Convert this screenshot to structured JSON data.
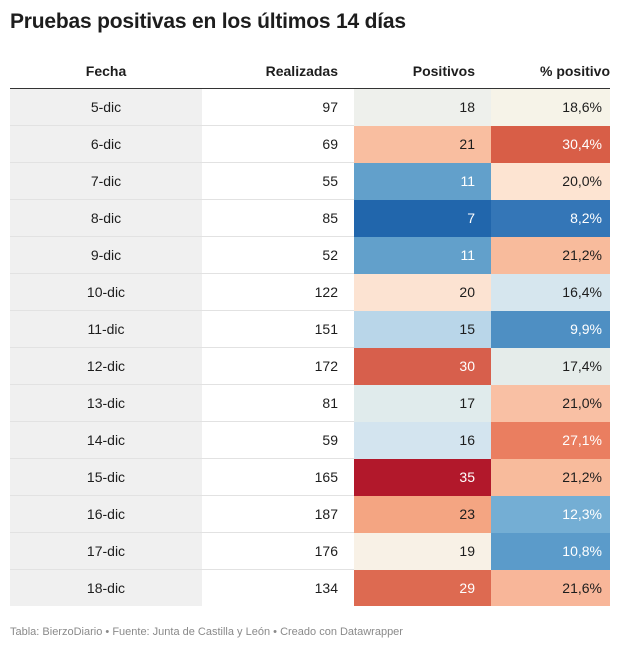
{
  "title": "Pruebas positivas en los últimos 14 días",
  "footer": {
    "source_label": "Tabla: BierzoDiario",
    "fuente": "Fuente: Junta de Castilla y León",
    "credit": "Creado con Datawrapper",
    "separator": "•"
  },
  "chart_data": {
    "type": "table",
    "columns": [
      "Fecha",
      "Realizadas",
      "Positivos",
      "% positivo"
    ],
    "rows": [
      {
        "fecha": "5-dic",
        "realizadas": 97,
        "positivos": 18,
        "pct": "18,6%",
        "pos_color": "#eef0ec",
        "pct_color": "#f6f3e8"
      },
      {
        "fecha": "6-dic",
        "realizadas": 69,
        "positivos": 21,
        "pct": "30,4%",
        "pos_color": "#f9bea0",
        "pct_color": "#d85e47"
      },
      {
        "fecha": "7-dic",
        "realizadas": 55,
        "positivos": 11,
        "pct": "20,0%",
        "pos_color": "#62a0cb",
        "pct_color": "#fde4d2"
      },
      {
        "fecha": "8-dic",
        "realizadas": 85,
        "positivos": 7,
        "pct": "8,2%",
        "pos_color": "#2166ac",
        "pct_color": "#3476b7"
      },
      {
        "fecha": "9-dic",
        "realizadas": 52,
        "positivos": 11,
        "pct": "21,2%",
        "pos_color": "#62a0cb",
        "pct_color": "#f8bb9c"
      },
      {
        "fecha": "10-dic",
        "realizadas": 122,
        "positivos": 20,
        "pct": "16,4%",
        "pos_color": "#fce3d2",
        "pct_color": "#d6e6ee"
      },
      {
        "fecha": "11-dic",
        "realizadas": 151,
        "positivos": 15,
        "pct": "9,9%",
        "pos_color": "#b9d6e9",
        "pct_color": "#4e8fc3"
      },
      {
        "fecha": "12-dic",
        "realizadas": 172,
        "positivos": 30,
        "pct": "17,4%",
        "pos_color": "#d75f4c",
        "pct_color": "#e5ecea"
      },
      {
        "fecha": "13-dic",
        "realizadas": 81,
        "positivos": 17,
        "pct": "21,0%",
        "pos_color": "#e0ebec",
        "pct_color": "#f9c0a4"
      },
      {
        "fecha": "14-dic",
        "realizadas": 59,
        "positivos": 16,
        "pct": "27,1%",
        "pos_color": "#d3e4ef",
        "pct_color": "#ea7e60"
      },
      {
        "fecha": "15-dic",
        "realizadas": 165,
        "positivos": 35,
        "pct": "21,2%",
        "pos_color": "#b2182b",
        "pct_color": "#f8bb9c"
      },
      {
        "fecha": "16-dic",
        "realizadas": 187,
        "positivos": 23,
        "pct": "12,3%",
        "pos_color": "#f4a582",
        "pct_color": "#74aed4"
      },
      {
        "fecha": "17-dic",
        "realizadas": 176,
        "positivos": 19,
        "pct": "10,8%",
        "pos_color": "#f8f1e6",
        "pct_color": "#5b9bca"
      },
      {
        "fecha": "18-dic",
        "realizadas": 134,
        "positivos": 29,
        "pct": "21,6%",
        "pos_color": "#dd6a51",
        "pct_color": "#f8b699"
      }
    ]
  }
}
